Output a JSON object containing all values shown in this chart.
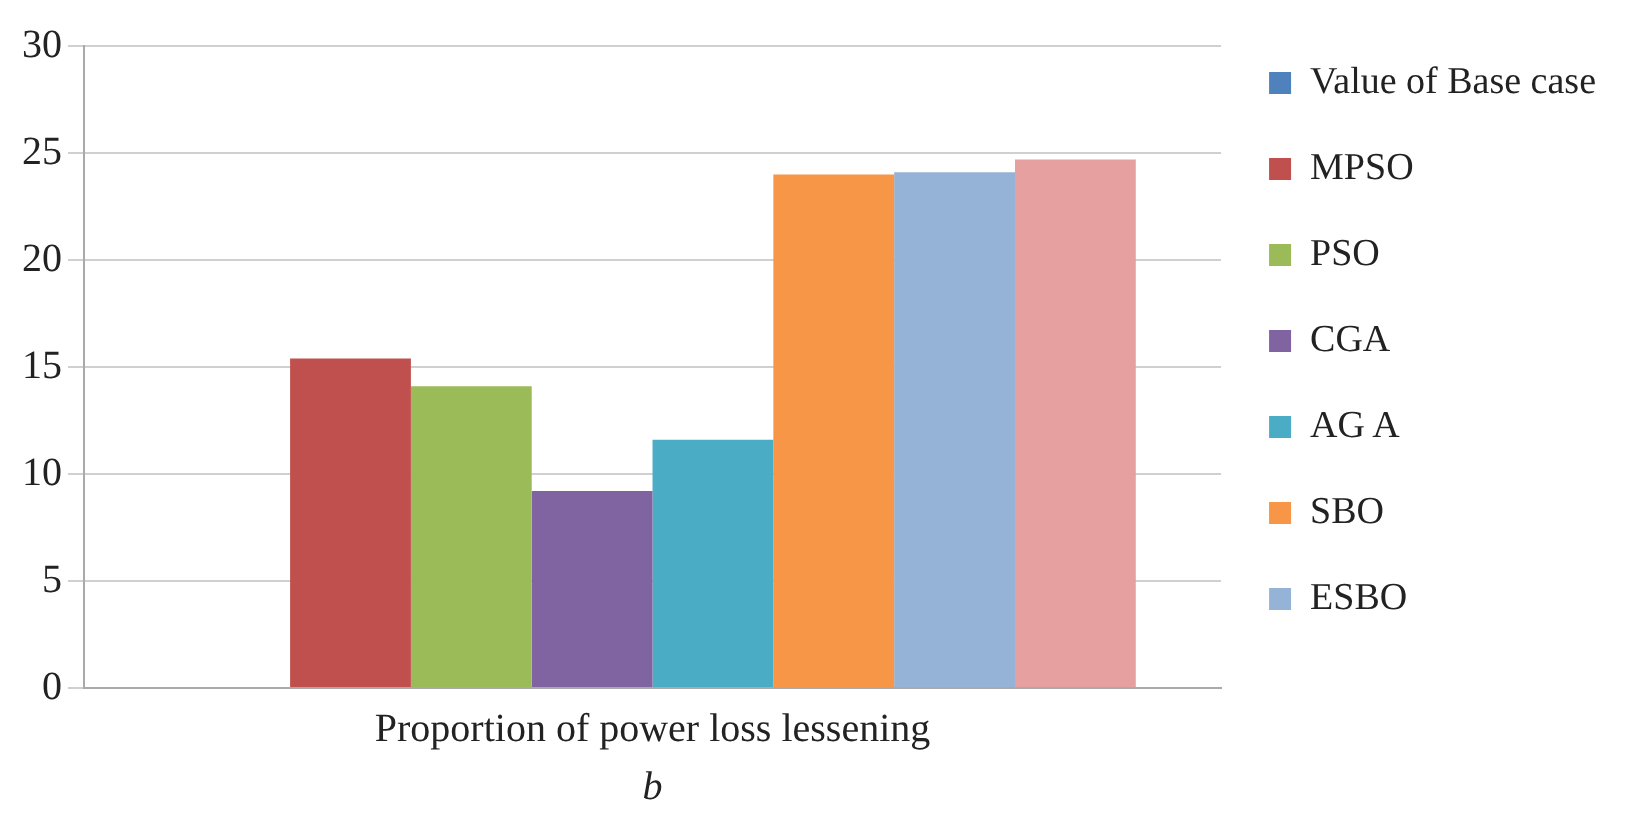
{
  "chart_data": {
    "type": "bar",
    "categories": [
      "Proportion of power loss lessening"
    ],
    "series": [
      {
        "name": "Value of Base case",
        "color": "#4f81bd",
        "values": [
          0
        ]
      },
      {
        "name": "MPSO",
        "color": "#c0504d",
        "values": [
          15.4
        ]
      },
      {
        "name": "PSO",
        "color": "#9bbb59",
        "values": [
          14.1
        ]
      },
      {
        "name": "CGA",
        "color": "#8064a2",
        "values": [
          9.2
        ]
      },
      {
        "name": "AG A",
        "color": "#4bacc6",
        "values": [
          11.6
        ]
      },
      {
        "name": "SBO",
        "color": "#f79646",
        "values": [
          24.0
        ]
      },
      {
        "name": "ESBO",
        "color": "#95b3d7",
        "values": [
          24.1
        ]
      },
      {
        "color": "#e6a0a0",
        "values": [
          24.7
        ]
      }
    ],
    "ylim": [
      0,
      30
    ],
    "yticks": [
      0,
      5,
      10,
      15,
      20,
      25,
      30
    ],
    "grid": "y",
    "legend": "right",
    "annotations": [
      "b"
    ]
  }
}
